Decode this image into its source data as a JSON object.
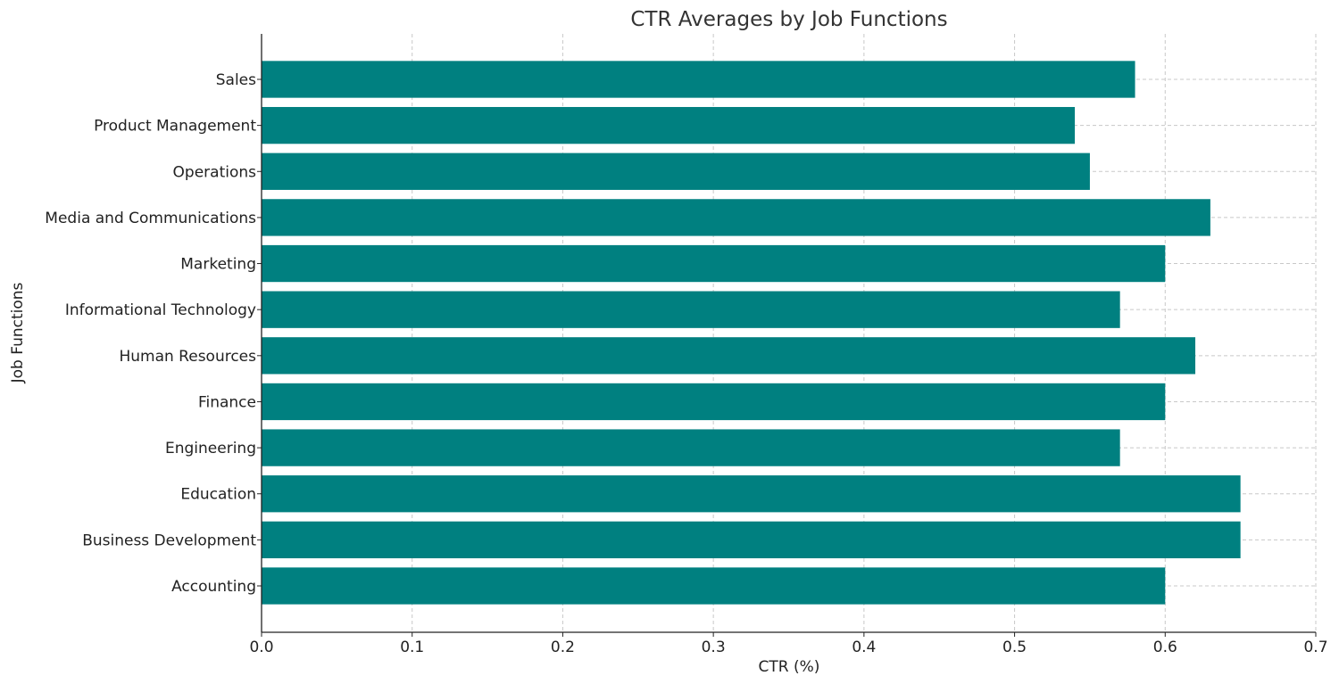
{
  "chart_data": {
    "type": "bar",
    "orientation": "horizontal",
    "title": "CTR Averages by Job Functions",
    "xlabel": "CTR (%)",
    "ylabel": "Job Functions",
    "categories": [
      "Accounting",
      "Business Development",
      "Education",
      "Engineering",
      "Finance",
      "Human Resources",
      "Informational Technology",
      "Marketing",
      "Media and Communications",
      "Operations",
      "Product Management",
      "Sales"
    ],
    "values": [
      0.6,
      0.65,
      0.65,
      0.57,
      0.6,
      0.62,
      0.57,
      0.6,
      0.63,
      0.55,
      0.54,
      0.58
    ],
    "xlim": [
      0,
      0.7
    ],
    "xticks": [
      "0.0",
      "0.1",
      "0.2",
      "0.3",
      "0.4",
      "0.5",
      "0.6",
      "0.7"
    ],
    "grid": true,
    "bar_color": "#008080"
  }
}
